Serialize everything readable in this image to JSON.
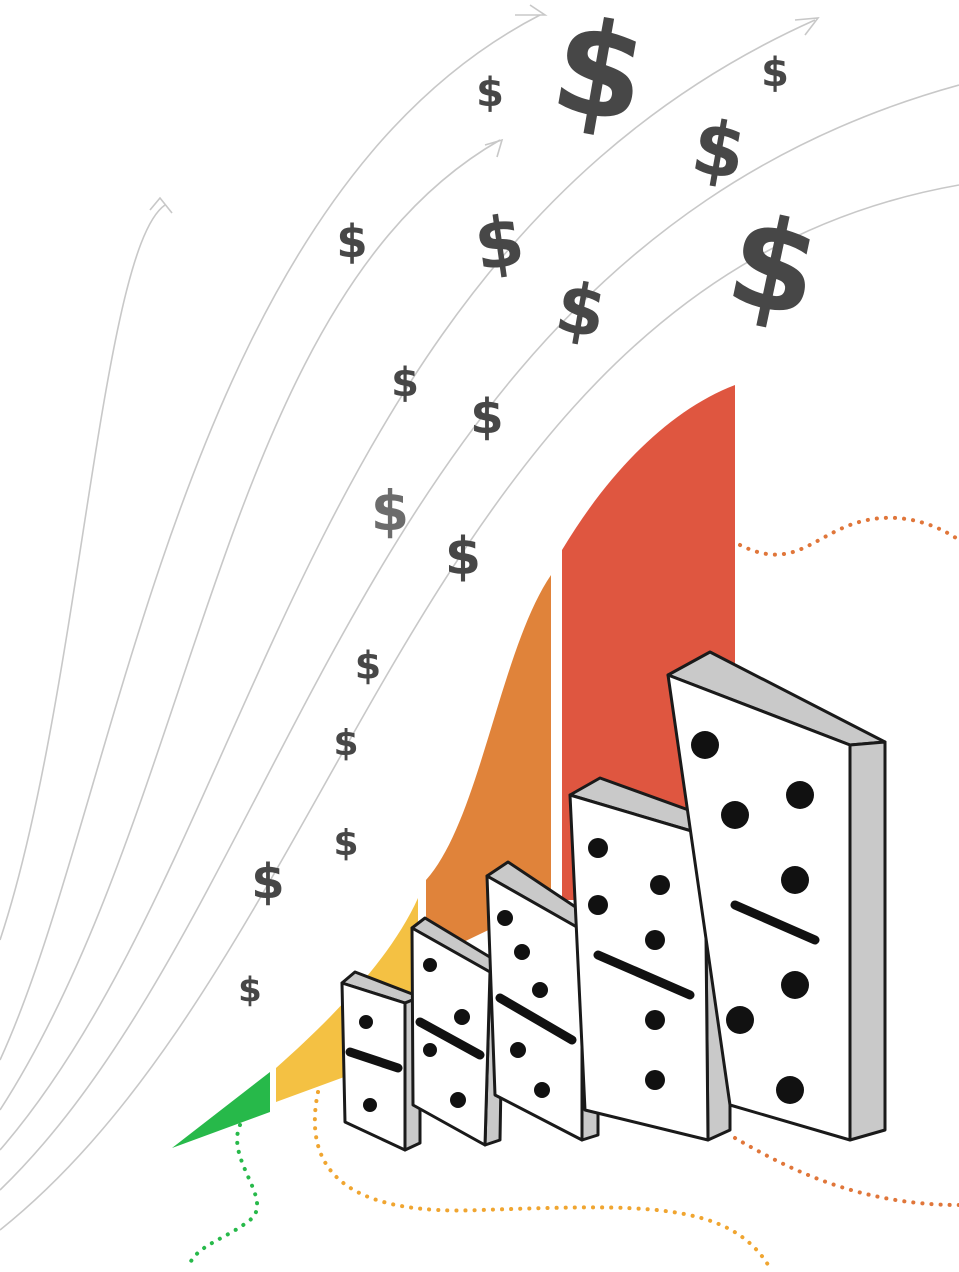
{
  "symbol": "$"
}
